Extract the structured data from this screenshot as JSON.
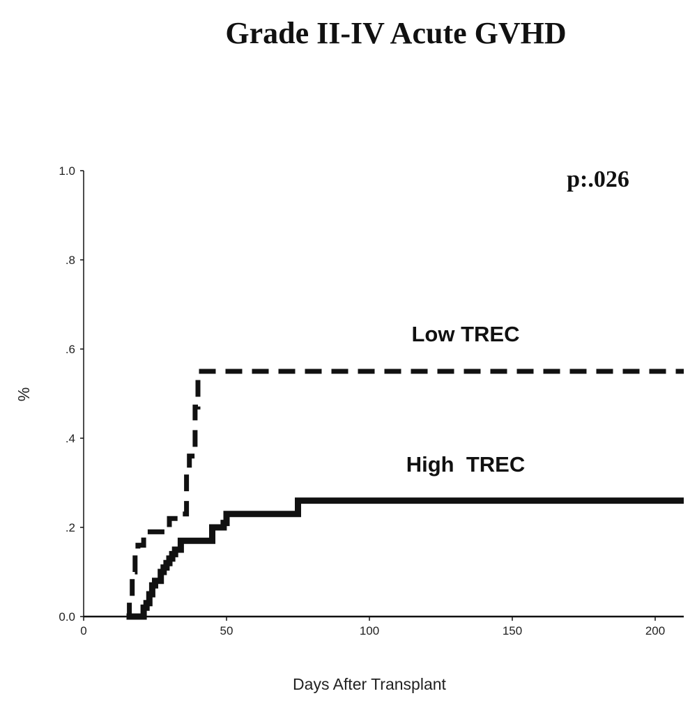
{
  "chart_data": {
    "type": "line",
    "title": "Grade II-IV Acute GVHD",
    "xlabel": "Days After Transplant",
    "ylabel": "%",
    "xlim": [
      0,
      210
    ],
    "ylim": [
      0,
      1.0
    ],
    "xticks": [
      0,
      50,
      100,
      150,
      200
    ],
    "xtick_labels": [
      "0",
      "50",
      "100",
      "150",
      "200"
    ],
    "yticks": [
      0,
      0.2,
      0.4,
      0.6,
      0.8,
      1.0
    ],
    "ytick_labels": [
      "0.0",
      ".2",
      ".4",
      ".6",
      ".8",
      "1.0"
    ],
    "grid": false,
    "annotation": "p:.026",
    "series": [
      {
        "name": "Low TREC",
        "style": "dashed",
        "color": "#111111",
        "x": [
          15,
          16,
          17,
          18,
          19,
          21,
          28,
          30,
          32,
          36,
          37,
          39,
          40,
          210
        ],
        "y": [
          0.0,
          0.04,
          0.1,
          0.14,
          0.16,
          0.19,
          0.19,
          0.22,
          0.23,
          0.33,
          0.36,
          0.47,
          0.55,
          0.55
        ]
      },
      {
        "name": "High  TREC",
        "style": "solid",
        "color": "#111111",
        "x": [
          15,
          20,
          21,
          22,
          23,
          24,
          25,
          27,
          28,
          29,
          30,
          31,
          32,
          34,
          43,
          45,
          49,
          50,
          74,
          75,
          210
        ],
        "y": [
          0.0,
          0.0,
          0.02,
          0.03,
          0.05,
          0.07,
          0.08,
          0.1,
          0.11,
          0.12,
          0.13,
          0.14,
          0.15,
          0.17,
          0.17,
          0.2,
          0.21,
          0.23,
          0.23,
          0.26,
          0.26
        ]
      }
    ]
  }
}
